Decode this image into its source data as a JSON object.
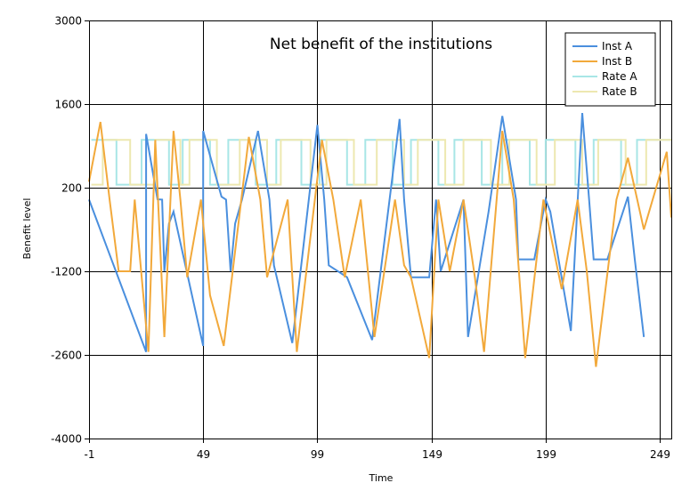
{
  "chart_data": {
    "type": "line",
    "title": "Net benefit of the institutions",
    "xlabel": "Time",
    "ylabel": "Benefit level",
    "xlim": [
      -1,
      254
    ],
    "ylim": [
      -4000,
      3000
    ],
    "xticks": [
      -1,
      49,
      99,
      149,
      199,
      249
    ],
    "yticks": [
      3000,
      1600,
      200,
      -1200,
      -2600,
      -4000
    ],
    "grid": true,
    "legend_position": "top-right",
    "series": [
      {
        "name": "Inst A",
        "color": "#4a8fde",
        "style": "solid",
        "points": [
          [
            -1,
            0
          ],
          [
            24,
            -2550
          ],
          [
            24,
            1100
          ],
          [
            29,
            5
          ],
          [
            31,
            0
          ],
          [
            32,
            -1200
          ],
          [
            34,
            -400
          ],
          [
            36,
            -200
          ],
          [
            49,
            -2450
          ],
          [
            49,
            1150
          ],
          [
            57,
            50
          ],
          [
            59,
            0
          ],
          [
            61,
            -1200
          ],
          [
            63,
            -400
          ],
          [
            66,
            0
          ],
          [
            73,
            1150
          ],
          [
            78,
            0
          ],
          [
            80,
            -1100
          ],
          [
            88,
            -2400
          ],
          [
            99,
            1250
          ],
          [
            102,
            0
          ],
          [
            104,
            -1100
          ],
          [
            112,
            -1300
          ],
          [
            123,
            -2350
          ],
          [
            135,
            1350
          ],
          [
            137,
            0
          ],
          [
            140,
            -1300
          ],
          [
            148,
            -1300
          ],
          [
            151,
            0
          ],
          [
            153,
            -1200
          ],
          [
            163,
            0
          ],
          [
            165,
            -2300
          ],
          [
            174,
            -200
          ],
          [
            180,
            1400
          ],
          [
            186,
            0
          ],
          [
            187,
            -1000
          ],
          [
            194,
            -1000
          ],
          [
            199,
            0
          ],
          [
            201,
            -200
          ],
          [
            210,
            -2200
          ],
          [
            215,
            1450
          ],
          [
            218,
            0
          ],
          [
            220,
            -1000
          ],
          [
            226,
            -1000
          ],
          [
            235,
            50
          ],
          [
            238,
            -1000
          ],
          [
            242,
            -2300
          ]
        ]
      },
      {
        "name": "Inst B",
        "color": "#f2a93b",
        "style": "solid",
        "points": [
          [
            -1,
            300
          ],
          [
            4,
            1300
          ],
          [
            8,
            0
          ],
          [
            12,
            -1200
          ],
          [
            17,
            -1200
          ],
          [
            19,
            0
          ],
          [
            25,
            -2550
          ],
          [
            28,
            1000
          ],
          [
            32,
            -2300
          ],
          [
            36,
            1150
          ],
          [
            39,
            0
          ],
          [
            42,
            -1300
          ],
          [
            48,
            0
          ],
          [
            52,
            -1600
          ],
          [
            58,
            -2450
          ],
          [
            69,
            1050
          ],
          [
            74,
            0
          ],
          [
            77,
            -1300
          ],
          [
            86,
            0
          ],
          [
            90,
            -2550
          ],
          [
            101,
            1000
          ],
          [
            106,
            0
          ],
          [
            111,
            -1300
          ],
          [
            118,
            0
          ],
          [
            124,
            -2300
          ],
          [
            133,
            0
          ],
          [
            137,
            -1100
          ],
          [
            140,
            -1300
          ],
          [
            148,
            -2650
          ],
          [
            152,
            0
          ],
          [
            157,
            -1200
          ],
          [
            163,
            0
          ],
          [
            168,
            -1300
          ],
          [
            172,
            -2550
          ],
          [
            180,
            1150
          ],
          [
            185,
            0
          ],
          [
            190,
            -2650
          ],
          [
            198,
            0
          ],
          [
            206,
            -1500
          ],
          [
            213,
            0
          ],
          [
            217,
            -1200
          ],
          [
            221,
            -2800
          ],
          [
            230,
            0
          ],
          [
            235,
            700
          ],
          [
            242,
            -500
          ],
          [
            252,
            800
          ],
          [
            254,
            -300
          ]
        ]
      },
      {
        "name": "Rate A",
        "color": "#a8e6e6",
        "style": "step",
        "high": 1000,
        "low": 250,
        "transitions": [
          [
            0,
            1000
          ],
          [
            11,
            250
          ],
          [
            22,
            1000
          ],
          [
            34,
            250
          ],
          [
            40,
            1000
          ],
          [
            52,
            250
          ],
          [
            60,
            1000
          ],
          [
            72,
            250
          ],
          [
            81,
            1000
          ],
          [
            92,
            250
          ],
          [
            100,
            1000
          ],
          [
            112,
            250
          ],
          [
            120,
            1000
          ],
          [
            132,
            250
          ],
          [
            140,
            1000
          ],
          [
            152,
            250
          ],
          [
            159,
            1000
          ],
          [
            171,
            250
          ],
          [
            180,
            1000
          ],
          [
            192,
            250
          ],
          [
            199,
            1000
          ],
          [
            212,
            250
          ],
          [
            220,
            1000
          ],
          [
            232,
            250
          ],
          [
            239,
            1000
          ],
          [
            254,
            1000
          ]
        ]
      },
      {
        "name": "Rate B",
        "color": "#ede8b0",
        "style": "step",
        "high": 1000,
        "low": 250,
        "transitions": [
          [
            0,
            250
          ],
          [
            5,
            1000
          ],
          [
            17,
            250
          ],
          [
            28,
            1000
          ],
          [
            39,
            250
          ],
          [
            43,
            1000
          ],
          [
            55,
            250
          ],
          [
            65,
            1000
          ],
          [
            77,
            250
          ],
          [
            83,
            1000
          ],
          [
            96,
            250
          ],
          [
            103,
            1000
          ],
          [
            115,
            250
          ],
          [
            125,
            1000
          ],
          [
            137,
            250
          ],
          [
            143,
            1000
          ],
          [
            155,
            250
          ],
          [
            163,
            1000
          ],
          [
            175,
            250
          ],
          [
            183,
            1000
          ],
          [
            195,
            250
          ],
          [
            203,
            1000
          ],
          [
            215,
            250
          ],
          [
            222,
            1000
          ],
          [
            234,
            250
          ],
          [
            243,
            1000
          ],
          [
            254,
            1000
          ]
        ]
      }
    ]
  }
}
